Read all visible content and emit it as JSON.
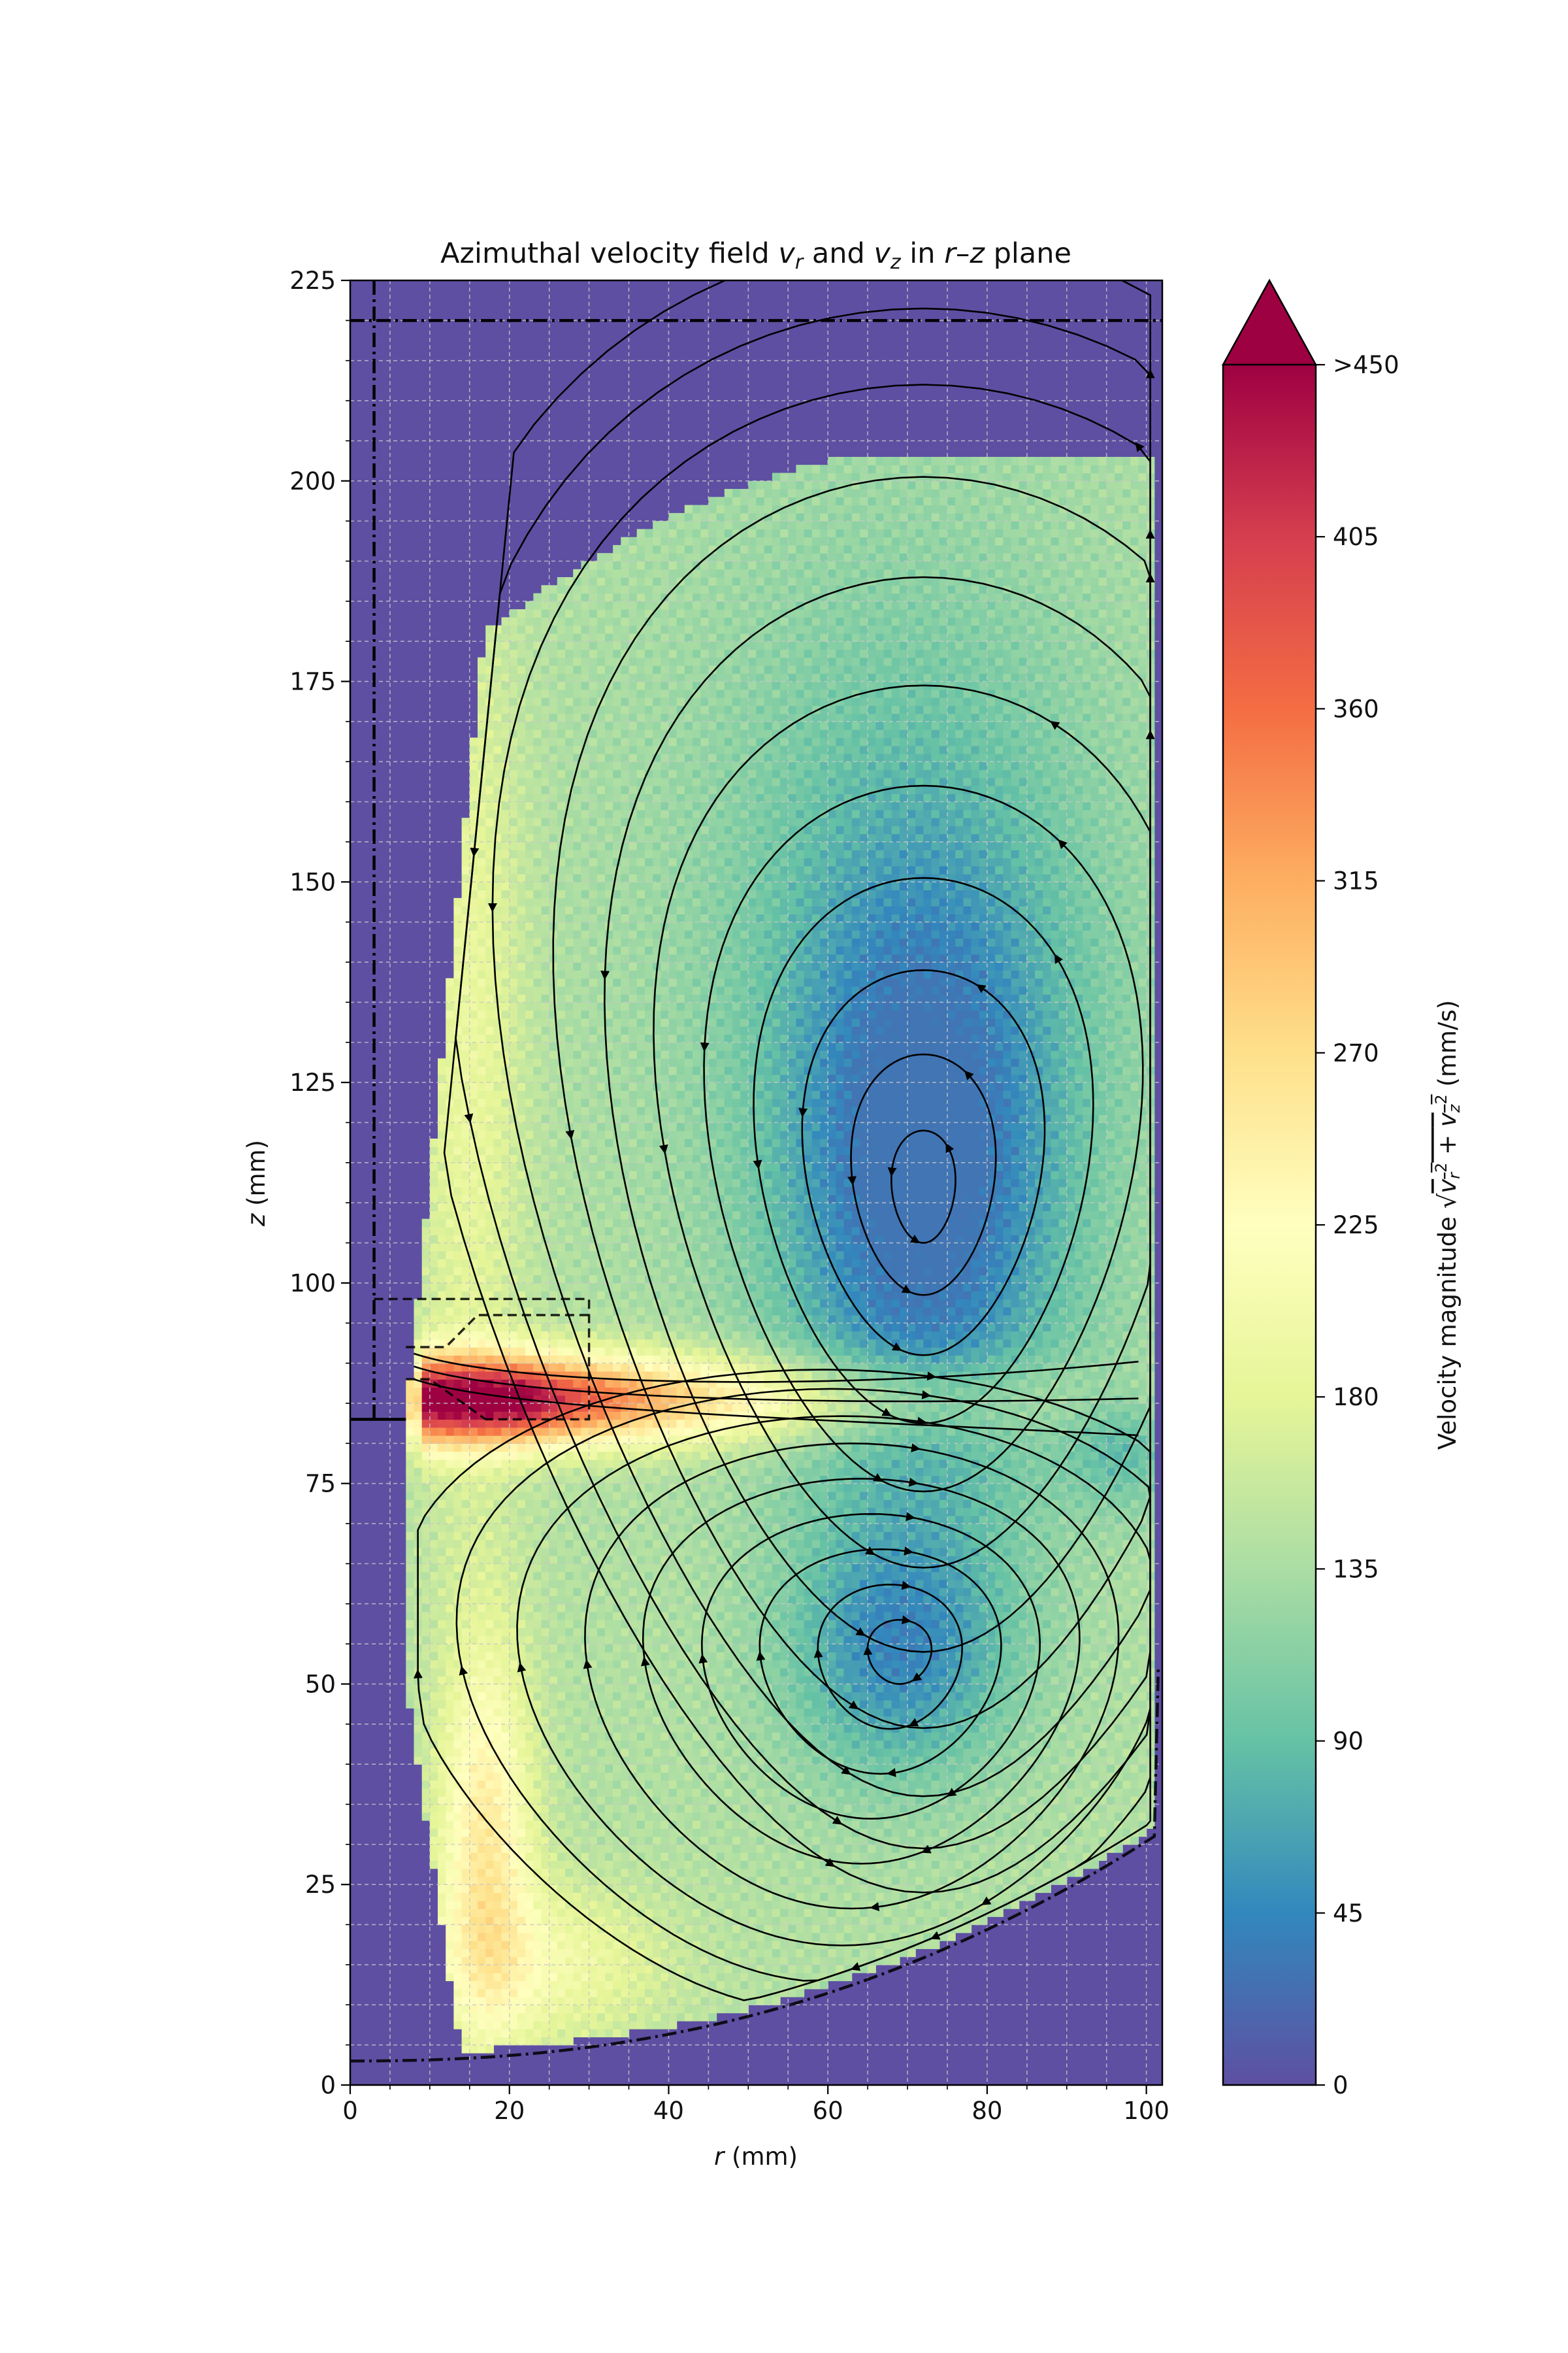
{
  "chart_data": {
    "type": "heatmap",
    "title": {
      "pre": "Azimuthal velocity field ",
      "v1": "v",
      "s1": "r",
      "mid": " and ",
      "v2": "v",
      "s2": "z",
      "post": " in ",
      "r": "r",
      "dash": "–",
      "z": "z",
      "tail": " plane"
    },
    "xlabel": {
      "var": "r",
      "unit": " (mm)"
    },
    "ylabel": {
      "var": "z",
      "unit": " (mm)"
    },
    "xlim": [
      0,
      102
    ],
    "ylim": [
      0,
      225
    ],
    "x_ticks": [
      0,
      20,
      40,
      60,
      80,
      100
    ],
    "y_ticks": [
      0,
      25,
      50,
      75,
      100,
      125,
      150,
      175,
      200,
      225
    ],
    "grid": true,
    "colorbar": {
      "label_pre": "Velocity magnitude ",
      "label_unit": "  (mm/s)",
      "range": [
        0,
        450
      ],
      "ticks": [
        "0",
        "45",
        "90",
        "135",
        "180",
        "225",
        "270",
        "315",
        "360",
        "405",
        ">450"
      ],
      "colormap": [
        "#5e4fa2",
        "#3288bd",
        "#66c2a5",
        "#abdda4",
        "#e6f598",
        "#ffffbf",
        "#fee08b",
        "#fdae61",
        "#f46d43",
        "#d53e4f",
        "#9e0142"
      ]
    },
    "annotations": {
      "upper_vortex_center": {
        "r": 72,
        "z": 112
      },
      "lower_vortex_center": {
        "r": 69,
        "z": 54
      },
      "jet_peak": {
        "r": 25,
        "z": 85,
        "speed": 430
      },
      "lid_level_z": 220,
      "shaft_radius_r": 3,
      "impeller_box": {
        "r": [
          0,
          30
        ],
        "z": [
          83,
          98
        ]
      }
    }
  }
}
